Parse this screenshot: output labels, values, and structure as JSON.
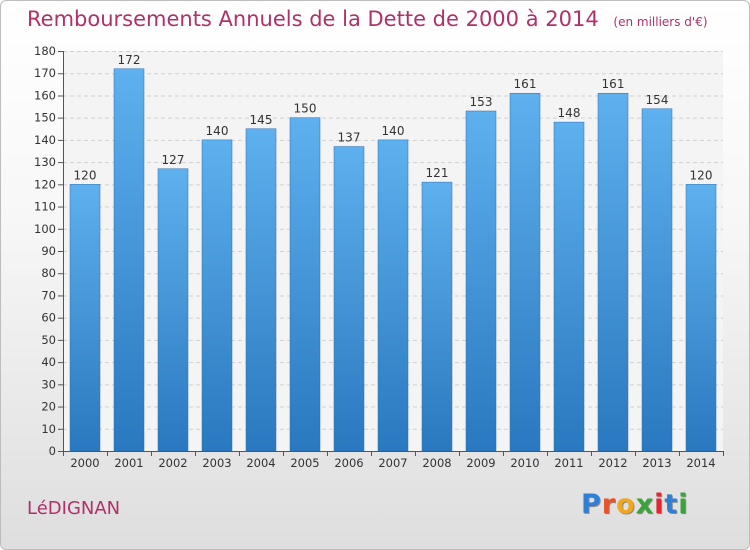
{
  "chart_data": {
    "type": "bar",
    "title": "Remboursements Annuels de la Dette de 2000 à 2014",
    "unit_label": "(en milliers d'€)",
    "categories": [
      "2000",
      "2001",
      "2002",
      "2003",
      "2004",
      "2005",
      "2006",
      "2007",
      "2008",
      "2009",
      "2010",
      "2011",
      "2012",
      "2013",
      "2014"
    ],
    "values": [
      120,
      172,
      127,
      140,
      145,
      150,
      137,
      140,
      121,
      153,
      161,
      148,
      161,
      154,
      120
    ],
    "ylim": [
      0,
      180
    ],
    "yticks": [
      0,
      10,
      20,
      30,
      40,
      50,
      60,
      70,
      80,
      90,
      100,
      110,
      120,
      130,
      140,
      150,
      160,
      170,
      180
    ],
    "grid": true,
    "bar_color": "#4a9fe0"
  },
  "commune": "LéDIGNAN",
  "logo": {
    "letters": [
      "P",
      "r",
      "o",
      "x",
      "i",
      "t",
      "i"
    ],
    "colors": [
      "#2e7fd6",
      "#e8542a",
      "#f0a81e",
      "#3aa43a",
      "#e0282e",
      "#2e7fd6",
      "#3aa43a"
    ]
  }
}
